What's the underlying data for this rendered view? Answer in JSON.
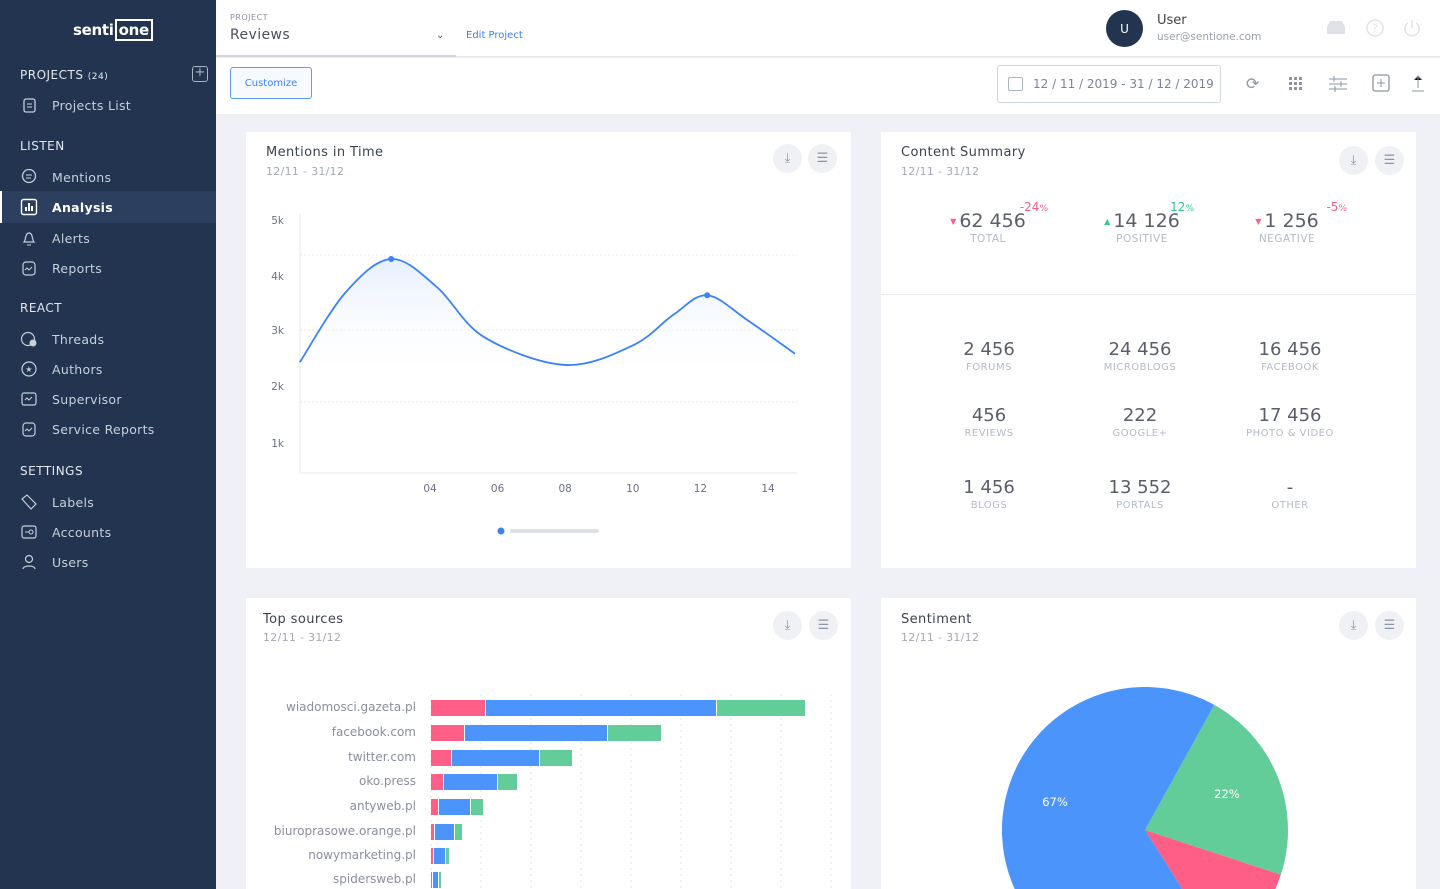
{
  "brand": {
    "logo_text_a": "senti",
    "logo_text_b": "one"
  },
  "sidebar": {
    "projects_label": "PROJECTS",
    "projects_count": "(24)",
    "projects_list": "Projects List",
    "sections": [
      {
        "title": "LISTEN",
        "items": [
          {
            "label": "Mentions",
            "icon": "chat-bubble-icon"
          },
          {
            "label": "Analysis",
            "icon": "bar-chart-icon",
            "active": true
          },
          {
            "label": "Alerts",
            "icon": "bell-icon"
          },
          {
            "label": "Reports",
            "icon": "report-icon"
          }
        ]
      },
      {
        "title": "REACT",
        "items": [
          {
            "label": "Threads",
            "icon": "thread-icon"
          },
          {
            "label": "Authors",
            "icon": "star-circle-icon"
          },
          {
            "label": "Supervisor",
            "icon": "monitor-chart-icon"
          },
          {
            "label": "Service Reports",
            "icon": "report-icon"
          }
        ]
      },
      {
        "title": "SETTINGS",
        "items": [
          {
            "label": "Labels",
            "icon": "tag-icon"
          },
          {
            "label": "Accounts",
            "icon": "key-icon"
          },
          {
            "label": "Users",
            "icon": "user-icon"
          }
        ]
      }
    ]
  },
  "header": {
    "project_label": "PROJECT",
    "project_value": "Reviews",
    "edit_project": "Edit Project",
    "user_initial": "U",
    "user_name": "User",
    "user_email": "user@sentione.com"
  },
  "toolbar": {
    "customize": "Customize",
    "date_range": "12 / 11 / 2019 - 31 / 12 / 2019"
  },
  "mentions": {
    "title": "Mentions in Time",
    "subtitle": "12/11   - 31/12",
    "chart_data": {
      "type": "line",
      "y_ticks": [
        "5k",
        "4k",
        "3k",
        "2k",
        "1k"
      ],
      "x_ticks": [
        "04",
        "06",
        "08",
        "10",
        "12",
        "14"
      ],
      "points": [
        [
          0.15,
          2450
        ],
        [
          1.5,
          3700
        ],
        [
          2.85,
          4300
        ],
        [
          4.2,
          3800
        ],
        [
          5.6,
          2900
        ],
        [
          8.0,
          2400
        ],
        [
          10.0,
          2750
        ],
        [
          11.2,
          3300
        ],
        [
          12.2,
          3650
        ],
        [
          13.4,
          3200
        ],
        [
          14.8,
          2600
        ]
      ],
      "highlighted": [
        [
          2.85,
          4300
        ],
        [
          12.2,
          3650
        ]
      ],
      "color": "#3b82f6"
    }
  },
  "summary": {
    "title": "Content Summary",
    "subtitle": "12/11   - 31/12",
    "top": [
      {
        "value": "62 456",
        "label": "TOTAL",
        "change": "-24",
        "trend": "down"
      },
      {
        "value": "14 126",
        "label": "POSITIVE",
        "change": "12",
        "trend": "up"
      },
      {
        "value": "1 256",
        "label": "NEGATIVE",
        "change": "-5",
        "trend": "down"
      }
    ],
    "pct_sign": "%",
    "stats": [
      {
        "value": "2 456",
        "label": "FORUMS"
      },
      {
        "value": "24 456",
        "label": "MICROBLOGS"
      },
      {
        "value": "16 456",
        "label": "FACEBOOK"
      },
      {
        "value": "456",
        "label": "REVIEWS"
      },
      {
        "value": "222",
        "label": "GOOGLE+"
      },
      {
        "value": "17 456",
        "label": "PHOTO & VIDEO"
      },
      {
        "value": "1 456",
        "label": "BLOGS"
      },
      {
        "value": "13 552",
        "label": "PORTALS"
      },
      {
        "value": "-",
        "label": "OTHER"
      }
    ]
  },
  "sources": {
    "title": "Top sources",
    "subtitle": "12/11   - 31/12",
    "chart_data": {
      "type": "bar",
      "orientation": "horizontal",
      "stacked": true,
      "categories": [
        "wiadomosci.gazeta.pl",
        "facebook.com",
        "twitter.com",
        "oko.press",
        "antyweb.pl",
        "biuroprasowe.orange.pl",
        "nowymarketing.pl",
        "spidersweb.pl"
      ],
      "series": [
        {
          "color": "#ff5f87",
          "values": [
            11,
            6.8,
            4.2,
            2.6,
            1.6,
            0.8,
            0.6,
            0.4
          ]
        },
        {
          "color": "#4a94fc",
          "values": [
            46.2,
            28.6,
            17.6,
            10.8,
            6.4,
            4,
            2.4,
            1.2
          ]
        },
        {
          "color": "#63cd99",
          "values": [
            17.8,
            10.8,
            6.6,
            4,
            2.6,
            1.6,
            0.8,
            0.6
          ]
        }
      ],
      "grid_step": 10
    }
  },
  "sentiment": {
    "title": "Sentiment",
    "subtitle": "12/11   - 31/12",
    "chart_data": {
      "type": "pie",
      "slices": [
        {
          "label": "22%",
          "value": 22,
          "color": "#63cd99"
        },
        {
          "label": "",
          "value": 11,
          "color": "#ff5f87"
        },
        {
          "label": "67%",
          "value": 67,
          "color": "#4a94fc"
        }
      ]
    }
  }
}
